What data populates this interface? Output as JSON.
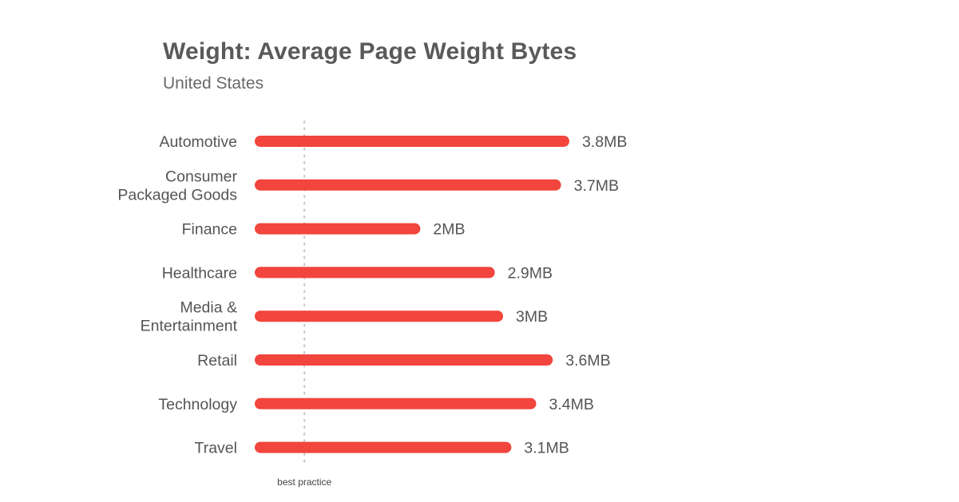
{
  "chart_data": {
    "type": "bar",
    "orientation": "horizontal",
    "title": "Weight: Average Page Weight Bytes",
    "subtitle": "United States",
    "categories": [
      [
        "Automotive"
      ],
      [
        "Consumer",
        "Packaged Goods"
      ],
      [
        "Finance"
      ],
      [
        "Healthcare"
      ],
      [
        "Media &",
        "Entertainment"
      ],
      [
        "Retail"
      ],
      [
        "Technology"
      ],
      [
        "Travel"
      ]
    ],
    "values": [
      3.8,
      3.7,
      2.0,
      2.9,
      3.0,
      3.6,
      3.4,
      3.1
    ],
    "value_labels": [
      "3.8MB",
      "3.7MB",
      "2MB",
      "2.9MB",
      "3MB",
      "3.6MB",
      "3.4MB",
      "3.1MB"
    ],
    "unit": "MB",
    "xlim": [
      0,
      3.8
    ],
    "reference_line": {
      "value": 0.6,
      "label": "best practice",
      "style": "dotted"
    },
    "grid": false,
    "legend": "none",
    "colors": {
      "bar": "#f1453d",
      "text": "#555555",
      "reference": "#c8c8c8"
    }
  }
}
